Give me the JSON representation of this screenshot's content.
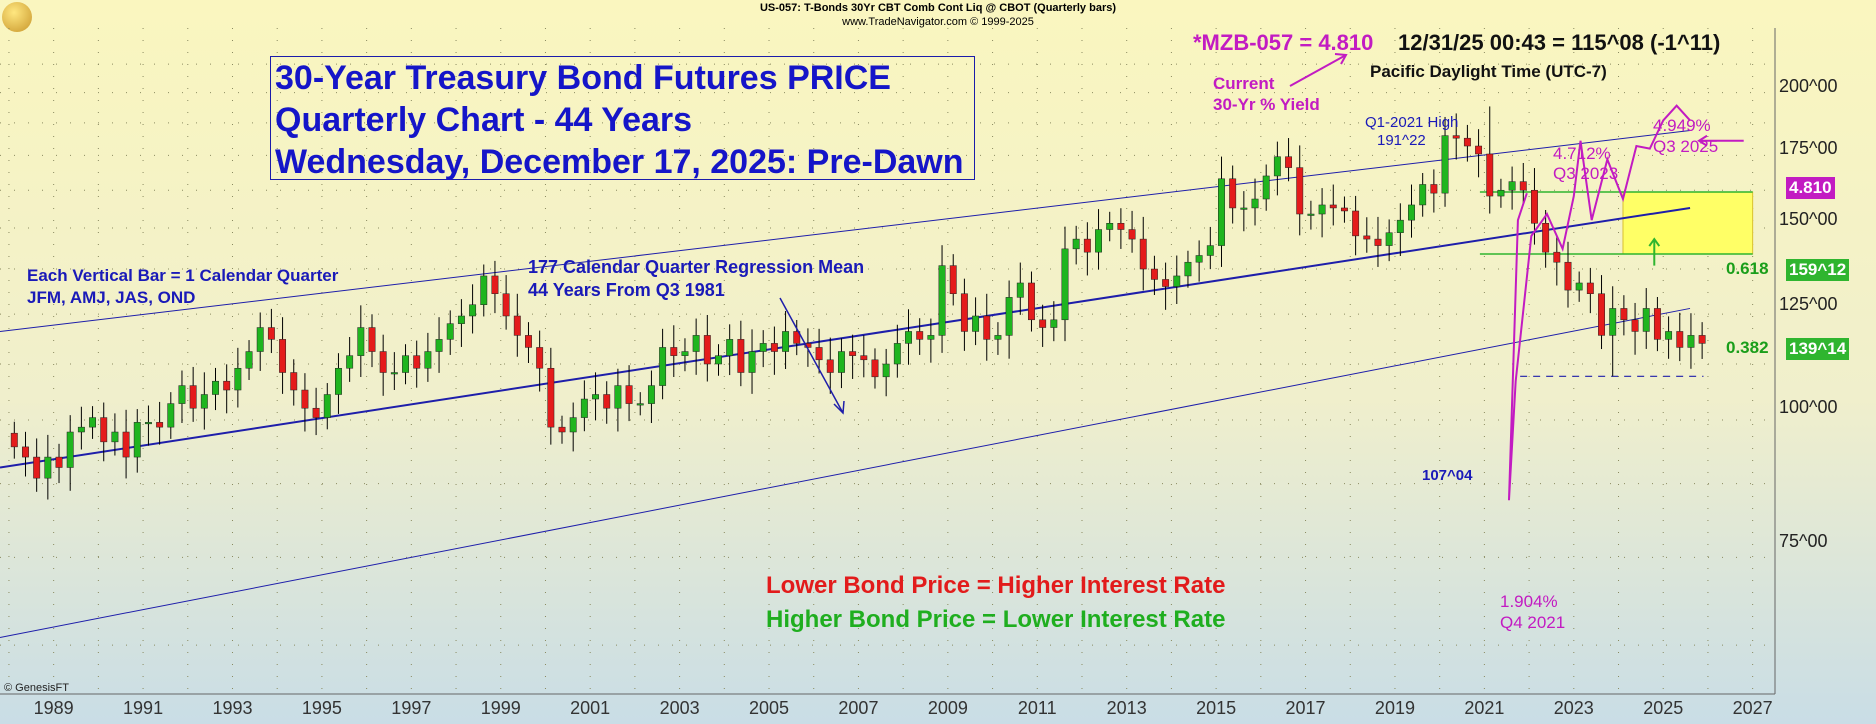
{
  "header": {
    "line1": "US-057:  T-Bonds 30Yr CBT Comb Cont Liq @ CBOT  (Quarterly bars)",
    "line2": "www.TradeNavigator.com © 1999-2025"
  },
  "title_box": {
    "line1": "30-Year Treasury Bond Futures PRICE",
    "line2": "Quarterly Chart - 44 Years",
    "line3": "Wednesday, December 17, 2025: Pre-Dawn"
  },
  "quote": {
    "symbol_value": "*MZB-057 = 4.810",
    "datetime_price": "12/31/25 00:43 = 115^08 (-1^11)",
    "timezone": "Pacific Daylight Time (UTC-7)"
  },
  "annotations": {
    "current_yield_1": "Current",
    "current_yield_2": "30-Yr % Yield",
    "q1_2021_high_1": "Q1-2021 High",
    "q1_2021_high_2": "191^22",
    "y2023_1": "4.712%",
    "y2023_2": "Q3 2023",
    "y2025_1": "4.949%",
    "y2025_2": "Q3 2025",
    "y2021_1": "1.904%",
    "y2021_2": "Q4 2021",
    "each_bar_1": "Each Vertical Bar = 1 Calendar Quarter",
    "each_bar_2": "JFM, AMJ, JAS, OND",
    "regression_1": "177 Calendar Quarter Regression Mean",
    "regression_2": " 44 Years From Q3 1981",
    "lower_price": "Lower Bond Price = Higher Interest Rate",
    "higher_price": "Higher Bond Price = Lower Interest Rate",
    "low_label": "107^04",
    "fib_618": "0.618",
    "fib_382": "0.382",
    "copyright": "© GenesisFT"
  },
  "markers": {
    "yield_marker": "4.810",
    "fib_618_price": "159^12",
    "fib_382_price": "139^14"
  },
  "colors": {
    "up": "#1fb51f",
    "down": "#e41b1b",
    "channel": "#1e1eaa",
    "yield_line": "#c21bc2",
    "fib": "#2fb52f",
    "zone": "#ffff66"
  },
  "y_axis": {
    "ticks": [
      "75^00",
      "100^00",
      "125^00",
      "150^00",
      "175^00",
      "200^00"
    ]
  },
  "x_axis": {
    "ticks": [
      "1989",
      "1991",
      "1993",
      "1995",
      "1997",
      "1999",
      "2001",
      "2003",
      "2005",
      "2007",
      "2009",
      "2011",
      "2013",
      "2015",
      "2017",
      "2019",
      "2021",
      "2023",
      "2025",
      "2027"
    ]
  },
  "chart_data": {
    "type": "candlestick",
    "title": "30-Year Treasury Bond Futures PRICE",
    "xlim": [
      1987.8,
      2027.5
    ],
    "ylim": [
      54,
      227
    ],
    "y_scale": "log",
    "quarterly_closes": [
      [
        1988.0,
        92
      ],
      [
        1988.25,
        90
      ],
      [
        1988.5,
        86
      ],
      [
        1988.75,
        90
      ],
      [
        1989.0,
        88
      ],
      [
        1989.25,
        95
      ],
      [
        1989.5,
        96
      ],
      [
        1989.75,
        98
      ],
      [
        1990.0,
        93
      ],
      [
        1990.25,
        95
      ],
      [
        1990.5,
        90
      ],
      [
        1990.75,
        97
      ],
      [
        1991.0,
        97
      ],
      [
        1991.25,
        96
      ],
      [
        1991.5,
        101
      ],
      [
        1991.75,
        105
      ],
      [
        1992.0,
        100
      ],
      [
        1992.25,
        103
      ],
      [
        1992.5,
        106
      ],
      [
        1992.75,
        104
      ],
      [
        1993.0,
        109
      ],
      [
        1993.25,
        113
      ],
      [
        1993.5,
        119
      ],
      [
        1993.75,
        116
      ],
      [
        1994.0,
        108
      ],
      [
        1994.25,
        104
      ],
      [
        1994.5,
        100
      ],
      [
        1994.75,
        98
      ],
      [
        1995.0,
        103
      ],
      [
        1995.25,
        109
      ],
      [
        1995.5,
        112
      ],
      [
        1995.75,
        119
      ],
      [
        1996.0,
        113
      ],
      [
        1996.25,
        108
      ],
      [
        1996.5,
        108
      ],
      [
        1996.75,
        112
      ],
      [
        1997.0,
        109
      ],
      [
        1997.25,
        113
      ],
      [
        1997.5,
        116
      ],
      [
        1997.75,
        120
      ],
      [
        1998.0,
        122
      ],
      [
        1998.25,
        125
      ],
      [
        1998.5,
        133
      ],
      [
        1998.75,
        128
      ],
      [
        1999.0,
        122
      ],
      [
        1999.25,
        117
      ],
      [
        1999.5,
        114
      ],
      [
        1999.75,
        109
      ],
      [
        2000.0,
        96
      ],
      [
        2000.25,
        95
      ],
      [
        2000.5,
        98
      ],
      [
        2000.75,
        102
      ],
      [
        2001.0,
        103
      ],
      [
        2001.25,
        100
      ],
      [
        2001.5,
        105
      ],
      [
        2001.75,
        101
      ],
      [
        2002.0,
        101
      ],
      [
        2002.25,
        105
      ],
      [
        2002.5,
        114
      ],
      [
        2002.75,
        112
      ],
      [
        2003.0,
        113
      ],
      [
        2003.25,
        117
      ],
      [
        2003.5,
        110
      ],
      [
        2003.75,
        112
      ],
      [
        2004.0,
        116
      ],
      [
        2004.25,
        108
      ],
      [
        2004.5,
        113
      ],
      [
        2004.75,
        115
      ],
      [
        2005.0,
        113
      ],
      [
        2005.25,
        118
      ],
      [
        2005.5,
        115
      ],
      [
        2005.75,
        114
      ],
      [
        2006.0,
        111
      ],
      [
        2006.25,
        108
      ],
      [
        2006.5,
        113
      ],
      [
        2006.75,
        112
      ],
      [
        2007.0,
        111
      ],
      [
        2007.25,
        107
      ],
      [
        2007.5,
        110
      ],
      [
        2007.75,
        115
      ],
      [
        2008.0,
        118
      ],
      [
        2008.25,
        116
      ],
      [
        2008.5,
        117
      ],
      [
        2008.75,
        136
      ],
      [
        2009.0,
        128
      ],
      [
        2009.25,
        118
      ],
      [
        2009.5,
        122
      ],
      [
        2009.75,
        116
      ],
      [
        2010.0,
        117
      ],
      [
        2010.25,
        127
      ],
      [
        2010.5,
        131
      ],
      [
        2010.75,
        121
      ],
      [
        2011.0,
        119
      ],
      [
        2011.25,
        121
      ],
      [
        2011.5,
        141
      ],
      [
        2011.75,
        144
      ],
      [
        2012.0,
        140
      ],
      [
        2012.25,
        147
      ],
      [
        2012.5,
        149
      ],
      [
        2012.75,
        147
      ],
      [
        2013.0,
        144
      ],
      [
        2013.25,
        135
      ],
      [
        2013.5,
        132
      ],
      [
        2013.75,
        130
      ],
      [
        2014.0,
        133
      ],
      [
        2014.25,
        137
      ],
      [
        2014.5,
        139
      ],
      [
        2014.75,
        142
      ],
      [
        2015.0,
        164
      ],
      [
        2015.25,
        154
      ],
      [
        2015.5,
        154
      ],
      [
        2015.75,
        157
      ],
      [
        2016.0,
        165
      ],
      [
        2016.25,
        172
      ],
      [
        2016.5,
        168
      ],
      [
        2016.75,
        152
      ],
      [
        2017.0,
        152
      ],
      [
        2017.25,
        155
      ],
      [
        2017.5,
        154
      ],
      [
        2017.75,
        153
      ],
      [
        2018.0,
        145
      ],
      [
        2018.25,
        144
      ],
      [
        2018.5,
        142
      ],
      [
        2018.75,
        146
      ],
      [
        2019.0,
        150
      ],
      [
        2019.25,
        155
      ],
      [
        2019.5,
        162
      ],
      [
        2019.75,
        159
      ],
      [
        2020.0,
        180
      ],
      [
        2020.25,
        179
      ],
      [
        2020.5,
        176
      ],
      [
        2020.75,
        173
      ],
      [
        2021.0,
        158
      ],
      [
        2021.25,
        160
      ],
      [
        2021.5,
        163
      ],
      [
        2021.75,
        160
      ],
      [
        2022.0,
        149
      ],
      [
        2022.25,
        140
      ],
      [
        2022.5,
        137
      ],
      [
        2022.75,
        129
      ],
      [
        2023.0,
        131
      ],
      [
        2023.25,
        128
      ],
      [
        2023.5,
        117
      ],
      [
        2023.75,
        124
      ],
      [
        2024.0,
        121
      ],
      [
        2024.25,
        118
      ],
      [
        2024.5,
        124
      ],
      [
        2024.75,
        116
      ],
      [
        2025.0,
        118
      ],
      [
        2025.25,
        114
      ],
      [
        2025.5,
        117
      ],
      [
        2025.75,
        115
      ]
    ],
    "regression_line": {
      "start": [
        1987.8,
        88
      ],
      "end": [
        2025.6,
        154
      ]
    },
    "channel_upper": {
      "start": [
        1987.8,
        118
      ],
      "end": [
        2025.6,
        182
      ]
    },
    "channel_lower": {
      "start": [
        1987.8,
        61
      ],
      "end": [
        2025.6,
        124
      ]
    },
    "fib_levels": [
      {
        "name": "0.618",
        "value": 159.375
      },
      {
        "name": "0.382",
        "value": 139.4375
      }
    ],
    "low_level": 107.125,
    "q1_2021_high": 191.6875,
    "yield_series_pct": [
      [
        2021.75,
        1.904
      ],
      [
        2023.5,
        4.712
      ],
      [
        2025.5,
        4.949
      ],
      [
        2025.75,
        4.81
      ]
    ],
    "xlabel": "",
    "ylabel": ""
  }
}
